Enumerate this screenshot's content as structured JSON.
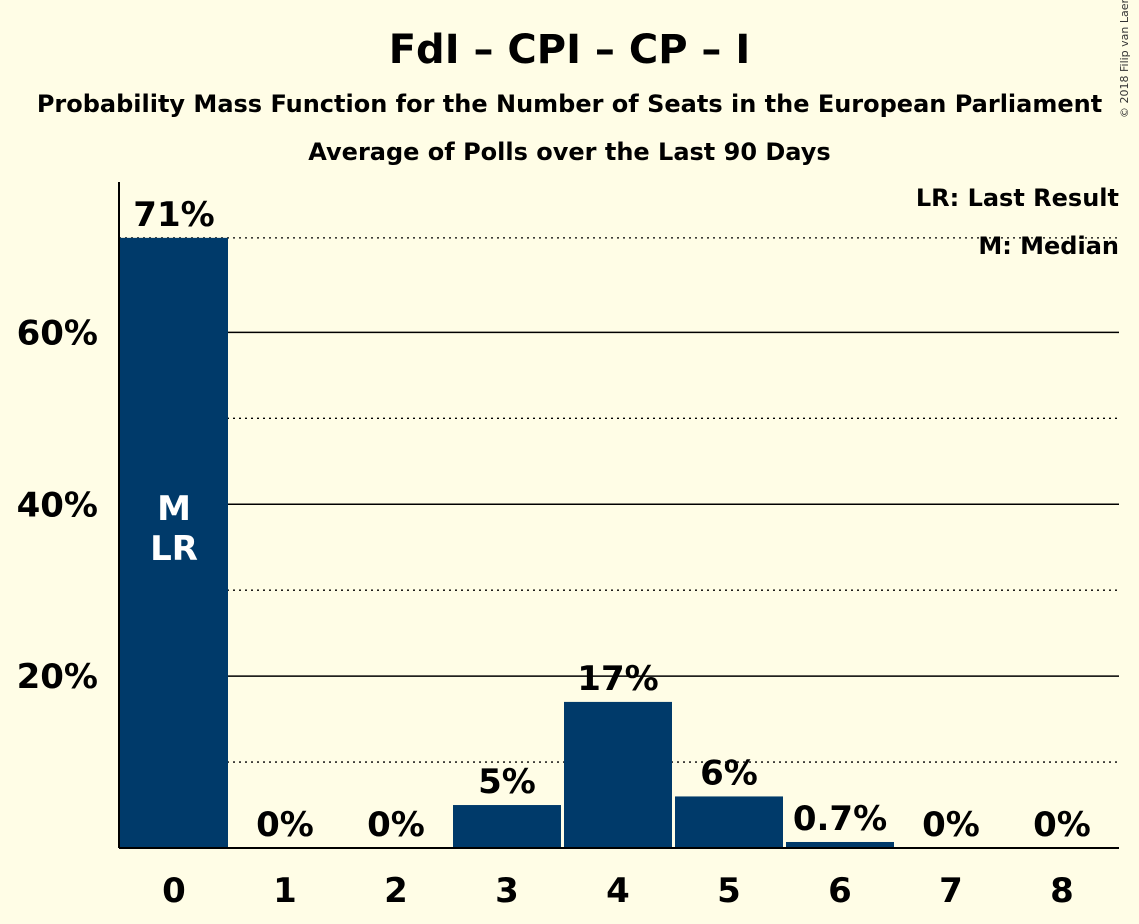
{
  "title": "FdI – CPI – CP – I",
  "subtitle": "Probability Mass Function for the Number of Seats in the European Parliament",
  "subtitle2": "Average of Polls over the Last 90 Days",
  "copyright": "© 2018 Filip van Laenen",
  "legend": {
    "last_result": "LR: Last Result",
    "median": "M: Median"
  },
  "colors": {
    "bar": "#003A6A",
    "background": "#FFFDE6"
  },
  "chart_data": {
    "type": "bar",
    "categories": [
      "0",
      "1",
      "2",
      "3",
      "4",
      "5",
      "6",
      "7",
      "8"
    ],
    "values": [
      71,
      0,
      0,
      5,
      17,
      6,
      0.7,
      0,
      0
    ],
    "data_labels": [
      "71%",
      "0%",
      "0%",
      "5%",
      "17%",
      "6%",
      "0.7%",
      "0%",
      "0%"
    ],
    "ylim": [
      0,
      77.5
    ],
    "yticks": [
      20,
      40,
      60
    ],
    "ytick_labels": [
      "20%",
      "40%",
      "60%"
    ],
    "minor_gridlines": [
      10,
      30,
      50,
      71
    ],
    "bar_annotations": {
      "category": "0",
      "lines": [
        "M",
        "LR"
      ]
    },
    "xlabel": "",
    "ylabel": ""
  }
}
